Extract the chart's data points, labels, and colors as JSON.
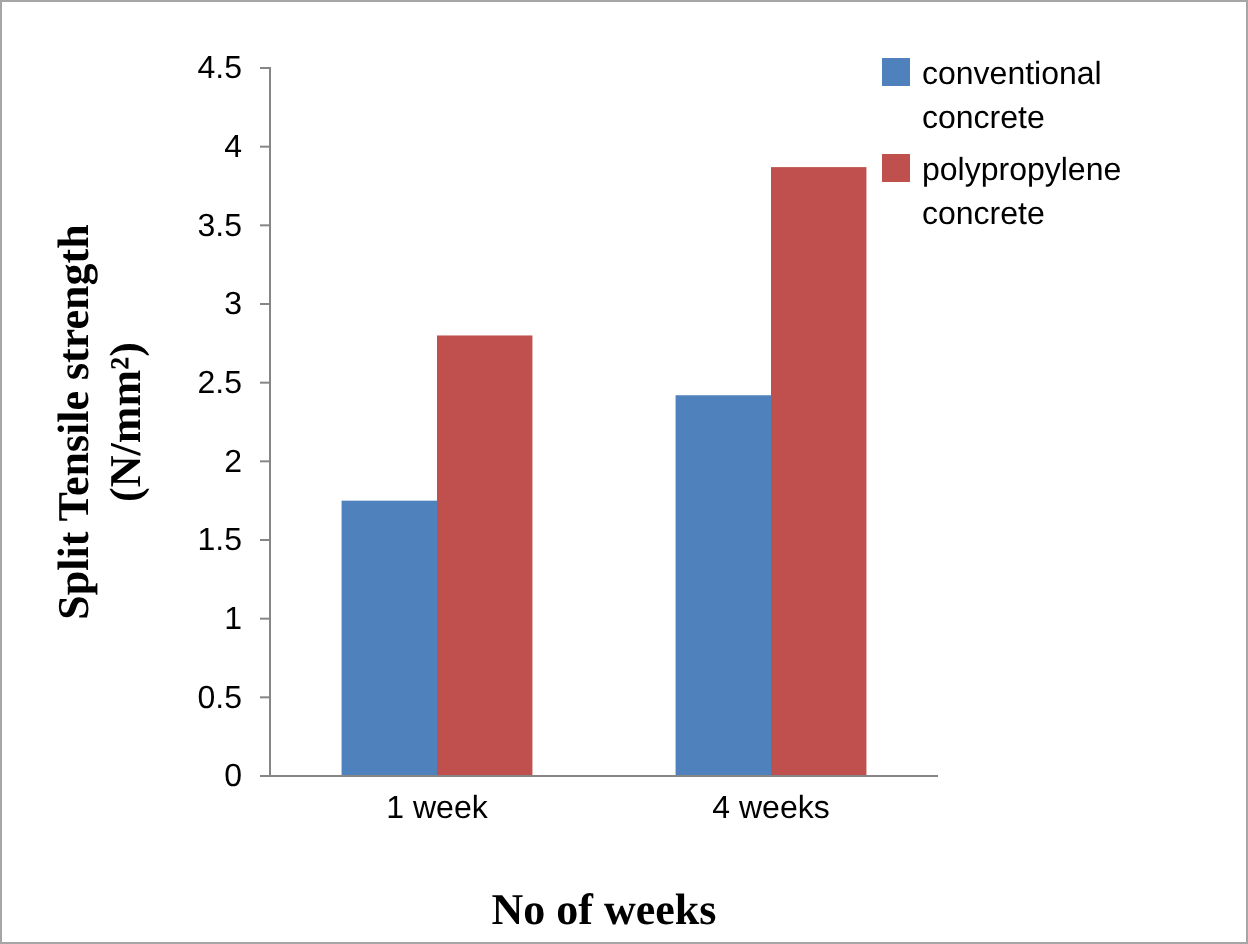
{
  "chart_data": {
    "type": "bar",
    "xlabel": "No of weeks",
    "ylabel": "Split Tensile strength (N/mm²)",
    "categories": [
      "1 week",
      "4 weeks"
    ],
    "series": [
      {
        "name": "conventional concrete",
        "color": "#4f81bd",
        "values": [
          1.75,
          2.42
        ]
      },
      {
        "name": "polypropylene concrete",
        "color": "#c0504d",
        "values": [
          2.8,
          3.87
        ]
      }
    ],
    "ylim": [
      0,
      4.5
    ],
    "yticks": [
      0,
      0.5,
      1,
      1.5,
      2,
      2.5,
      3,
      3.5,
      4,
      4.5
    ],
    "grid": false,
    "legend": "top right"
  }
}
